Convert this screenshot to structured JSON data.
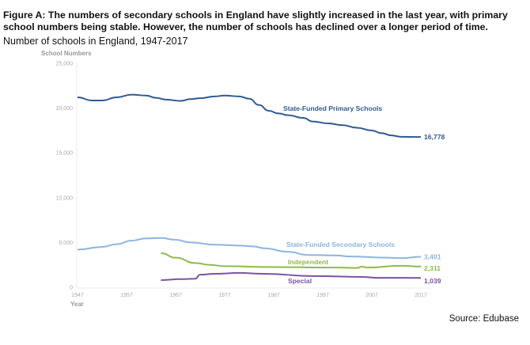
{
  "title": "Figure A: The numbers of secondary schools in England have slightly increased in the last year, with primary school numbers being stable. However, the number of schools has declined over a longer period of time.",
  "subtitle": "Number of schools in England, 1947-2017",
  "source": "Source: Edubase",
  "chart_data": {
    "type": "line",
    "ylabel": "School Numbers",
    "xlabel": "Year",
    "xlim": [
      1947,
      2017
    ],
    "ylim": [
      0,
      25000
    ],
    "x_ticks": [
      "1947",
      "1957",
      "1967",
      "1977",
      "1987",
      "1997",
      "2007",
      "2017"
    ],
    "y_ticks": [
      "0",
      "5,000",
      "10,000",
      "15,000",
      "20,000",
      "25,000"
    ],
    "grid": false,
    "series": [
      {
        "name": "State-Funded Primary Schools",
        "color": "#2f5a94",
        "end_label": "16,778",
        "x": [
          1947,
          1950,
          1952,
          1955,
          1958,
          1961,
          1963,
          1965,
          1968,
          1970,
          1972,
          1975,
          1977,
          1980,
          1982,
          1984,
          1986,
          1988,
          1990,
          1993,
          1995,
          1998,
          2001,
          2004,
          2007,
          2009,
          2011,
          2013,
          2017
        ],
        "y": [
          21200,
          20850,
          20850,
          21200,
          21500,
          21400,
          21150,
          20950,
          20800,
          21000,
          21100,
          21300,
          21400,
          21300,
          21050,
          20350,
          19700,
          19400,
          19200,
          18900,
          18500,
          18300,
          18100,
          17800,
          17500,
          17200,
          16950,
          16800,
          16778
        ]
      },
      {
        "name": "State-Funded Secondary Schools",
        "color": "#8db4e2",
        "end_label": "3,401",
        "x": [
          1947,
          1952,
          1955,
          1958,
          1961,
          1964,
          1967,
          1970,
          1975,
          1980,
          1983,
          1985,
          1990,
          1994,
          2000,
          2002,
          2010,
          2013,
          2017
        ],
        "y": [
          4200,
          4500,
          4800,
          5200,
          5450,
          5500,
          5300,
          5000,
          4750,
          4650,
          4550,
          4350,
          3950,
          3600,
          3550,
          3450,
          3300,
          3250,
          3401
        ]
      },
      {
        "name": "Independent",
        "color": "#8fba4a",
        "end_label": "2,311",
        "x": [
          1964,
          1967,
          1971,
          1974,
          1977,
          1987,
          2000,
          2004,
          2005,
          2006,
          2013,
          2017
        ],
        "y": [
          3800,
          3300,
          2700,
          2500,
          2350,
          2250,
          2200,
          2150,
          2300,
          2200,
          2400,
          2311
        ]
      },
      {
        "name": "Special",
        "color": "#7b52a5",
        "end_label": "1,039",
        "x": [
          1964,
          1968,
          1971,
          1972,
          1975,
          1980,
          1985,
          1995,
          2005,
          2008,
          2017
        ],
        "y": [
          800,
          900,
          950,
          1400,
          1500,
          1600,
          1500,
          1250,
          1150,
          1050,
          1039
        ]
      }
    ]
  }
}
